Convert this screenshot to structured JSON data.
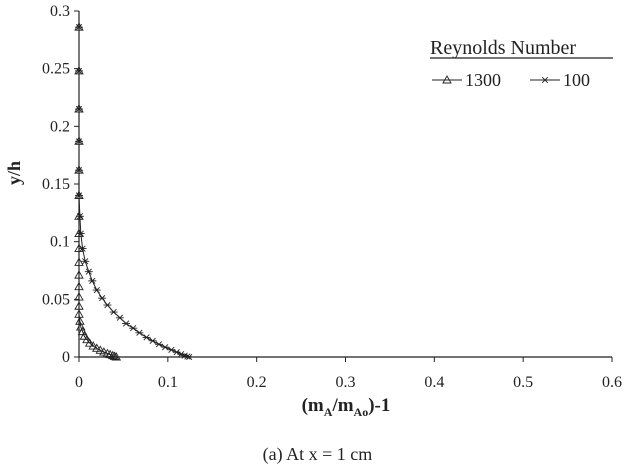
{
  "chart_data": {
    "type": "scatter",
    "xlabel": {
      "open": "(m",
      "sub1": "A",
      "mid": "/m",
      "sub2": "Ao",
      "close": ")-1"
    },
    "ylabel": "y/h",
    "xlim": [
      0,
      0.6
    ],
    "ylim": [
      0,
      0.3
    ],
    "x_ticks": [
      "0",
      "0.1",
      "0.2",
      "0.3",
      "0.4",
      "0.5",
      "0.6"
    ],
    "y_ticks": [
      "0",
      "0.05",
      "0.1",
      "0.15",
      "0.2",
      "0.25",
      "0.3"
    ],
    "grid": false,
    "legend": {
      "title": "Reynolds Number",
      "position": "top-right"
    },
    "series": [
      {
        "name": "1300",
        "marker": "triangle",
        "points": [
          [
            0.0,
            0.286
          ],
          [
            0.0,
            0.248
          ],
          [
            0.0,
            0.215
          ],
          [
            0.0,
            0.187
          ],
          [
            0.0,
            0.162
          ],
          [
            0.0,
            0.14
          ],
          [
            0.0,
            0.122
          ],
          [
            0.0,
            0.107
          ],
          [
            0.0,
            0.094
          ],
          [
            0.0,
            0.082
          ],
          [
            0.0,
            0.071
          ],
          [
            0.0,
            0.061
          ],
          [
            0.0,
            0.052
          ],
          [
            0.0,
            0.044
          ],
          [
            0.0,
            0.037
          ],
          [
            0.001,
            0.031
          ],
          [
            0.002,
            0.026
          ],
          [
            0.004,
            0.022
          ],
          [
            0.006,
            0.018
          ],
          [
            0.009,
            0.015
          ],
          [
            0.012,
            0.012
          ],
          [
            0.016,
            0.0095
          ],
          [
            0.02,
            0.0075
          ],
          [
            0.024,
            0.0058
          ],
          [
            0.028,
            0.0043
          ],
          [
            0.032,
            0.003
          ],
          [
            0.035,
            0.002
          ],
          [
            0.038,
            0.0012
          ],
          [
            0.04,
            0.0005
          ],
          [
            0.042,
            0.0
          ]
        ]
      },
      {
        "name": "100",
        "marker": "asterisk",
        "points": [
          [
            0.0,
            0.286
          ],
          [
            0.0,
            0.248
          ],
          [
            0.0,
            0.215
          ],
          [
            0.0,
            0.187
          ],
          [
            0.0,
            0.162
          ],
          [
            0.0,
            0.14
          ],
          [
            0.001,
            0.122
          ],
          [
            0.002,
            0.107
          ],
          [
            0.004,
            0.094
          ],
          [
            0.007,
            0.083
          ],
          [
            0.011,
            0.074
          ],
          [
            0.015,
            0.066
          ],
          [
            0.02,
            0.058
          ],
          [
            0.026,
            0.051
          ],
          [
            0.032,
            0.045
          ],
          [
            0.039,
            0.039
          ],
          [
            0.046,
            0.034
          ],
          [
            0.053,
            0.029
          ],
          [
            0.061,
            0.025
          ],
          [
            0.068,
            0.021
          ],
          [
            0.076,
            0.017
          ],
          [
            0.083,
            0.014
          ],
          [
            0.09,
            0.011
          ],
          [
            0.097,
            0.0085
          ],
          [
            0.104,
            0.0062
          ],
          [
            0.11,
            0.0042
          ],
          [
            0.115,
            0.0025
          ],
          [
            0.119,
            0.0012
          ],
          [
            0.122,
            0.0004
          ],
          [
            0.124,
            0.0
          ]
        ]
      }
    ]
  },
  "caption": "(a) At x = 1 cm"
}
